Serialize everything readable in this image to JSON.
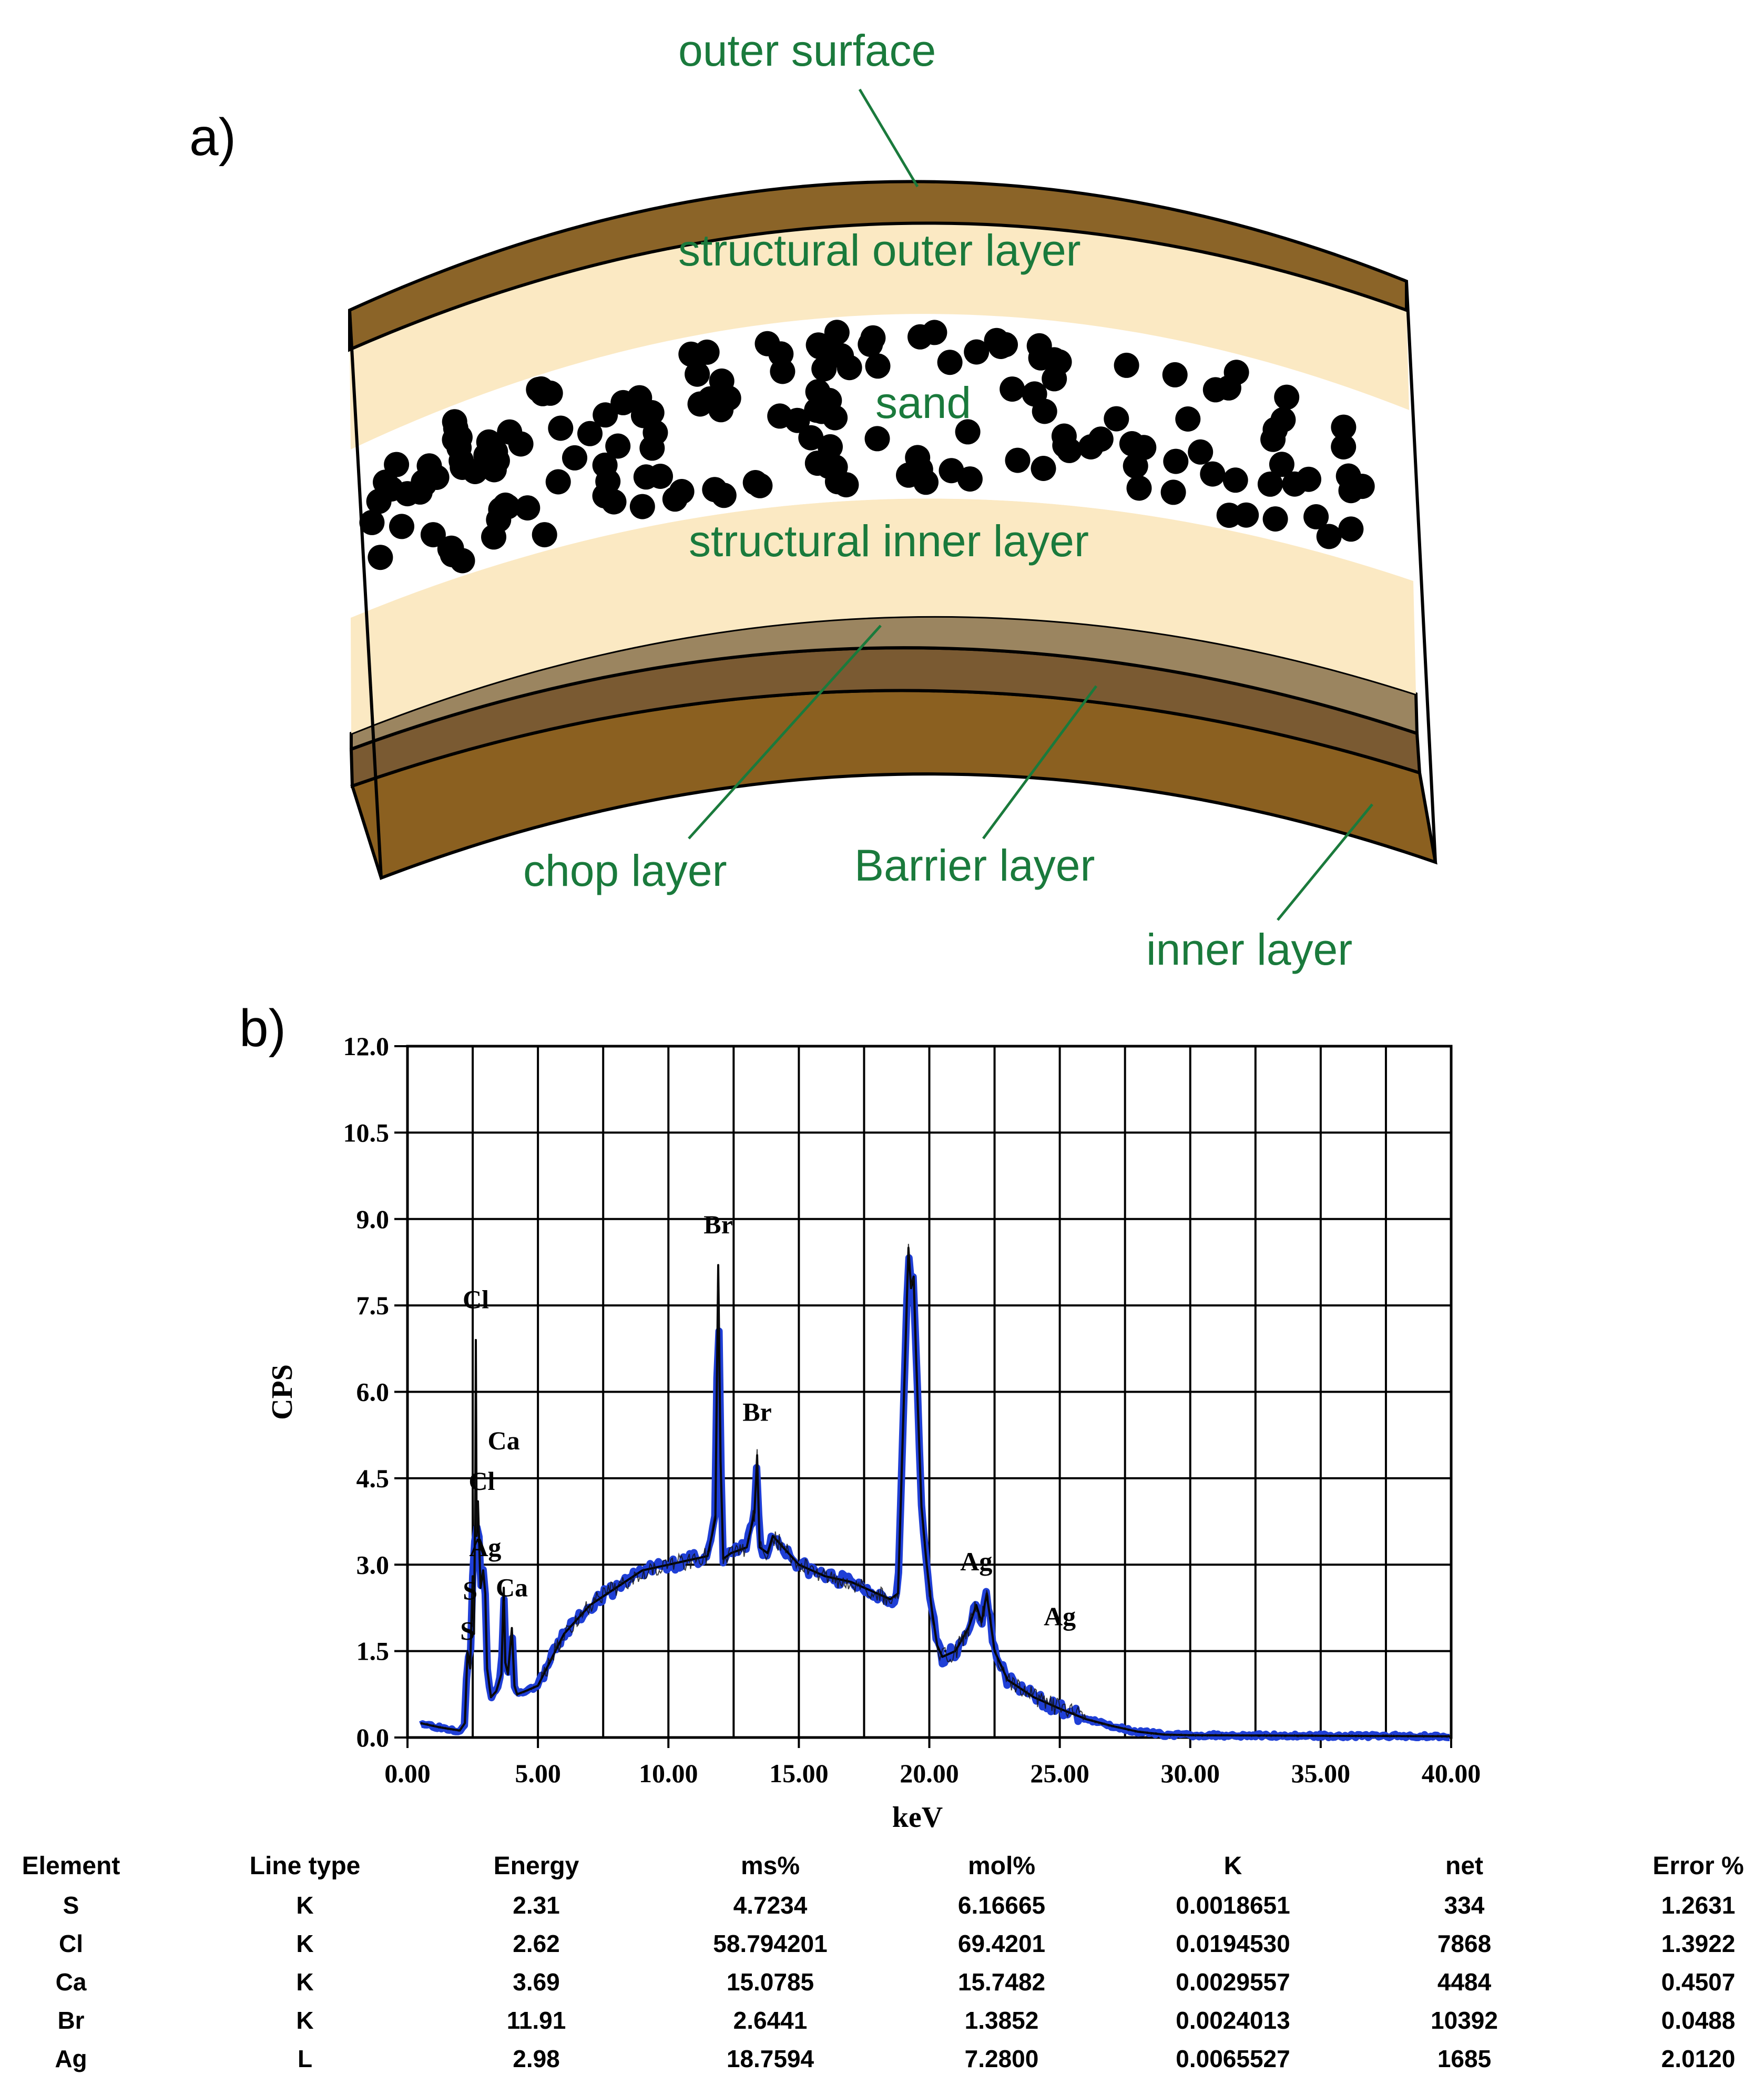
{
  "panel_a": {
    "panel_label": "a)",
    "labels": {
      "outer_surface": "outer surface",
      "structural_outer": "structural outer layer",
      "sand": "sand",
      "structural_inner": "structural inner layer",
      "chop": "chop layer",
      "barrier": "Barrier layer",
      "inner": "inner layer"
    },
    "colors": {
      "outer_surface": "#8b6428",
      "structural": "#fbe9c3",
      "sand_bg": "#ffffff",
      "sand_grain": "#000000",
      "chop": "#9b8560",
      "barrier": "#7a5a32",
      "inner": "#8b6020",
      "label": "#1a7a3c"
    }
  },
  "panel_b": {
    "panel_label": "b)"
  },
  "chart_data": {
    "type": "line",
    "title": "",
    "xlabel": "keV",
    "ylabel": "CPS",
    "xlim": [
      0,
      40
    ],
    "ylim": [
      0,
      12
    ],
    "grid": true,
    "x_ticks": [
      "0.00",
      "5.00",
      "10.00",
      "15.00",
      "20.00",
      "25.00",
      "30.00",
      "35.00",
      "40.00"
    ],
    "y_ticks": [
      "0.0",
      "1.5",
      "3.0",
      "4.5",
      "6.0",
      "7.5",
      "9.0",
      "10.5",
      "12.0"
    ],
    "series": [
      {
        "x": [
          0.5,
          0.8,
          1.2,
          1.6,
          2.0,
          2.2,
          2.3,
          2.4,
          2.5,
          2.55,
          2.6,
          2.62,
          2.65,
          2.7,
          2.8,
          2.9,
          2.98,
          3.05,
          3.2,
          3.4,
          3.6,
          3.69,
          3.75,
          3.85,
          4.0,
          4.1,
          4.2,
          4.5,
          5.0,
          6.0,
          7.0,
          8.0,
          9.0,
          10.0,
          11.0,
          11.5,
          11.8,
          11.91,
          12.0,
          12.1,
          12.4,
          13.0,
          13.3,
          13.4,
          13.5,
          13.8,
          14.0,
          15.0,
          16.0,
          17.0,
          18.0,
          18.5,
          18.8,
          19.0,
          19.2,
          19.3,
          19.4,
          19.5,
          19.7,
          19.9,
          20.1,
          20.3,
          20.5,
          21.0,
          21.5,
          21.8,
          22.0,
          22.2,
          22.5,
          23.0,
          24.0,
          25.0,
          26.0,
          27.0,
          28.0,
          29.0,
          30.0,
          35.0,
          40.0
        ],
        "y": [
          0.25,
          0.22,
          0.18,
          0.15,
          0.12,
          0.25,
          1.5,
          1.2,
          2.8,
          1.8,
          4.5,
          6.9,
          3.5,
          4.1,
          2.6,
          2.9,
          2.5,
          1.2,
          0.7,
          0.8,
          1.1,
          2.6,
          1.3,
          1.1,
          1.9,
          0.9,
          0.75,
          0.8,
          0.9,
          1.8,
          2.3,
          2.6,
          2.9,
          3.0,
          3.1,
          3.15,
          3.8,
          8.2,
          4.8,
          3.1,
          3.2,
          3.3,
          3.9,
          4.9,
          3.3,
          3.2,
          3.5,
          3.0,
          2.8,
          2.7,
          2.5,
          2.4,
          2.5,
          5.5,
          8.5,
          7.8,
          8.0,
          6.5,
          4.0,
          3.0,
          2.2,
          1.6,
          1.4,
          1.5,
          1.9,
          2.3,
          2.0,
          2.5,
          1.5,
          1.0,
          0.7,
          0.5,
          0.32,
          0.2,
          0.1,
          0.05,
          0.04,
          0.03,
          0.02
        ]
      }
    ],
    "annotations": [
      {
        "text": "S",
        "x": 2.3,
        "y": 1.7
      },
      {
        "text": "S",
        "x": 2.4,
        "y": 2.4
      },
      {
        "text": "Cl",
        "x": 2.62,
        "y": 7.45
      },
      {
        "text": "Cl",
        "x": 2.85,
        "y": 4.3
      },
      {
        "text": "Ag",
        "x": 2.98,
        "y": 3.15
      },
      {
        "text": "Ca",
        "x": 3.69,
        "y": 5.0
      },
      {
        "text": "Ca",
        "x": 4.0,
        "y": 2.45
      },
      {
        "text": "Br",
        "x": 11.91,
        "y": 8.75
      },
      {
        "text": "Br",
        "x": 13.4,
        "y": 5.5
      },
      {
        "text": "Ag",
        "x": 21.8,
        "y": 2.9
      },
      {
        "text": "Ag",
        "x": 25.0,
        "y": 1.95
      }
    ]
  },
  "table": {
    "headers": [
      "Element",
      "Line type",
      "Energy",
      "ms%",
      "mol%",
      "K",
      "net",
      "Error %"
    ],
    "rows": [
      [
        "S",
        "K",
        "2.31",
        "4.7234",
        "6.16665",
        "0.0018651",
        "334",
        "1.2631"
      ],
      [
        "Cl",
        "K",
        "2.62",
        "58.794201",
        "69.4201",
        "0.0194530",
        "7868",
        "1.3922"
      ],
      [
        "Ca",
        "K",
        "3.69",
        "15.0785",
        "15.7482",
        "0.0029557",
        "4484",
        "0.4507"
      ],
      [
        "Br",
        "K",
        "11.91",
        "2.6441",
        "1.3852",
        "0.0024013",
        "10392",
        "0.0488"
      ],
      [
        "Ag",
        "L",
        "2.98",
        "18.7594",
        "7.2800",
        "0.0065527",
        "1685",
        "2.0120"
      ]
    ]
  }
}
